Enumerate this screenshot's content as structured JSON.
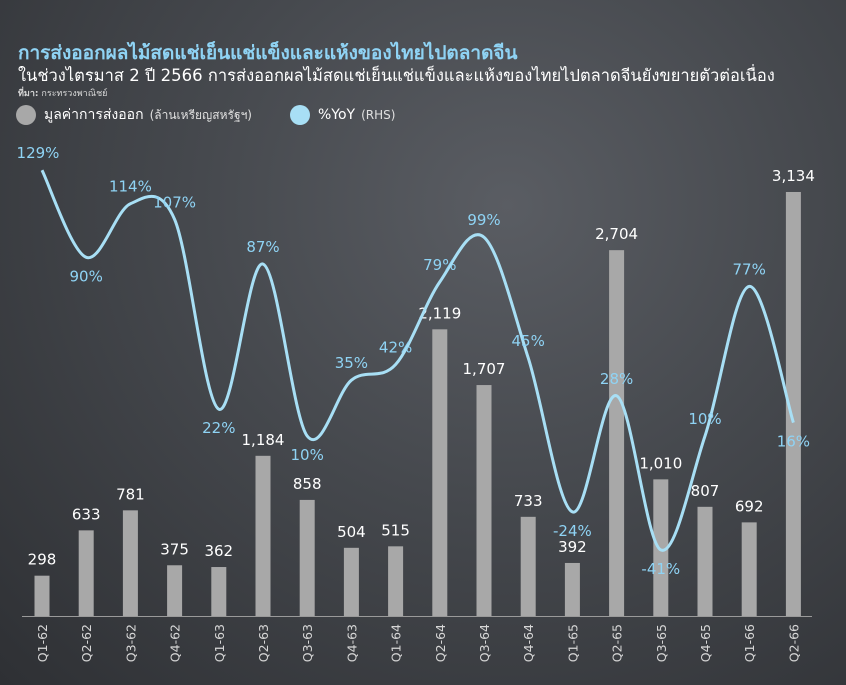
{
  "header": {
    "title": "การส่งออกผลไม้สดแช่เย็นแช่แข็งและแห้งของไทยไปตลาดจีน",
    "subtitle": "ในช่วงไตรมาส 2 ปี 2566 การส่งออกผลไม้สดแช่เย็นแช่แข็งและแห้งของไทยไปตลาดจีนยังขยายตัวต่อเนื่อง",
    "source_label": "ที่มา:",
    "source_value": "กระทรวงพาณิชย์"
  },
  "legend": {
    "bars_name": "มูลค่าการส่งออก",
    "bars_unit": "(ล้านเหรียญสหรัฐฯ)",
    "line_name": "%YoY",
    "line_unit": "(RHS)"
  },
  "colors": {
    "bar": "#a8a8a8",
    "line": "#a8dff5",
    "bar_label": "#ffffff",
    "line_label": "#8fd3f4"
  },
  "chart_data": {
    "type": "bar",
    "categories": [
      "Q1-62",
      "Q2-62",
      "Q3-62",
      "Q4-62",
      "Q1-63",
      "Q2-63",
      "Q3-63",
      "Q4-63",
      "Q1-64",
      "Q2-64",
      "Q3-64",
      "Q4-64",
      "Q1-65",
      "Q2-65",
      "Q3-65",
      "Q4-65",
      "Q1-66",
      "Q2-66"
    ],
    "series": [
      {
        "name": "มูลค่าการส่งออก (ล้านเหรียญสหรัฐฯ)",
        "kind": "bar",
        "axis": "left",
        "values": [
          298,
          633,
          781,
          375,
          362,
          1184,
          858,
          504,
          515,
          2119,
          1707,
          733,
          392,
          2704,
          1010,
          807,
          692,
          3134
        ],
        "labels": [
          "298",
          "633",
          "781",
          "375",
          "362",
          "1,184",
          "858",
          "504",
          "515",
          "2,119",
          "1,707",
          "733",
          "392",
          "2,704",
          "1,010",
          "807",
          "692",
          "3,134"
        ]
      },
      {
        "name": "%YoY (RHS)",
        "kind": "line",
        "axis": "right",
        "values": [
          129,
          90,
          114,
          107,
          22,
          87,
          10,
          35,
          42,
          79,
          99,
          45,
          -24,
          28,
          -41,
          10,
          77,
          16
        ],
        "labels": [
          "129%",
          "90%",
          "114%",
          "107%",
          "22%",
          "87%",
          "10%",
          "35%",
          "42%",
          "79%",
          "99%",
          "45%",
          "-24%",
          "28%",
          "-41%",
          "10%",
          "77%",
          "16%"
        ]
      }
    ],
    "left_axis_range": [
      0,
      3400
    ],
    "right_axis_range": [
      -50,
      130
    ],
    "grid": false,
    "legend_position": "top-left"
  }
}
